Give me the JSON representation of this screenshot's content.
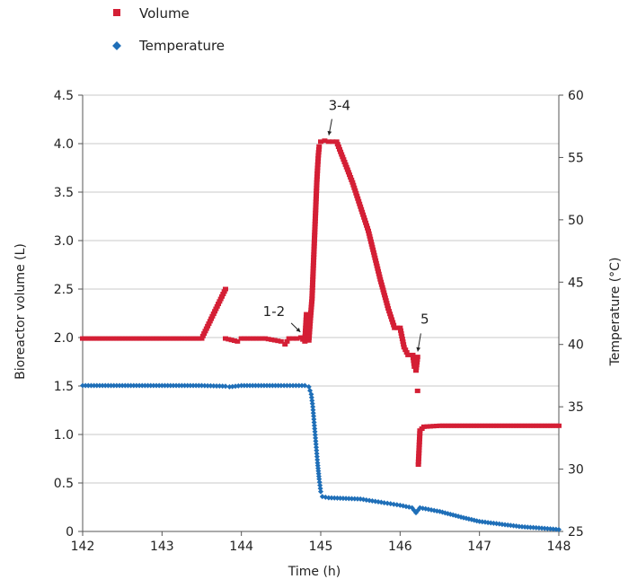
{
  "chart_data": {
    "type": "scatter",
    "xlabel": "Time (h)",
    "ylabel_left": "Bioreactor volume (L)",
    "ylabel_right": "Temperature (°C)",
    "xlim": [
      142,
      148
    ],
    "ylim_left": [
      0,
      4.5
    ],
    "ylim_right": [
      25,
      60
    ],
    "x_ticks": [
      "142",
      "143",
      "144",
      "145",
      "146",
      "147",
      "148"
    ],
    "y_ticks_left": [
      "0",
      "0.5",
      "1.0",
      "1.5",
      "2.0",
      "2.5",
      "3.0",
      "3.5",
      "4.0",
      "4.5"
    ],
    "y_ticks_right": [
      "25",
      "30",
      "35",
      "40",
      "45",
      "50",
      "55",
      "60"
    ],
    "grid": "horizontal",
    "legend_position": "top-left",
    "colors": {
      "volume": "#d41f35",
      "temperature": "#1f6fb8"
    },
    "series": [
      {
        "name": "Volume",
        "axis": "left",
        "marker": "square",
        "points": [
          [
            142.0,
            1.99
          ],
          [
            142.5,
            1.99
          ],
          [
            143.0,
            1.99
          ],
          [
            143.5,
            1.99
          ],
          [
            143.8,
            2.5
          ],
          [
            143.8,
            1.99
          ],
          [
            143.95,
            1.96
          ],
          [
            144.0,
            1.99
          ],
          [
            144.3,
            1.99
          ],
          [
            144.5,
            1.96
          ],
          [
            144.55,
            1.93
          ],
          [
            144.6,
            1.99
          ],
          [
            144.7,
            1.99
          ],
          [
            144.75,
            2.0
          ],
          [
            144.8,
            1.96
          ],
          [
            144.82,
            2.24
          ],
          [
            144.85,
            1.97
          ],
          [
            144.87,
            2.2
          ],
          [
            144.89,
            2.4
          ],
          [
            144.9,
            2.6
          ],
          [
            144.91,
            2.8
          ],
          [
            144.92,
            3.0
          ],
          [
            144.93,
            3.2
          ],
          [
            144.94,
            3.4
          ],
          [
            144.95,
            3.6
          ],
          [
            144.96,
            3.75
          ],
          [
            144.97,
            3.88
          ],
          [
            144.98,
            3.97
          ],
          [
            145.0,
            4.02
          ],
          [
            145.05,
            4.03
          ],
          [
            145.1,
            4.02
          ],
          [
            145.2,
            4.02
          ],
          [
            145.4,
            3.6
          ],
          [
            145.6,
            3.1
          ],
          [
            145.75,
            2.6
          ],
          [
            145.85,
            2.3
          ],
          [
            145.93,
            2.1
          ],
          [
            146.0,
            2.1
          ],
          [
            146.05,
            1.9
          ],
          [
            146.1,
            1.82
          ],
          [
            146.16,
            1.82
          ],
          [
            146.18,
            1.7
          ],
          [
            146.2,
            1.66
          ],
          [
            146.22,
            1.8
          ],
          [
            146.22,
            1.45
          ],
          [
            146.23,
            0.69
          ],
          [
            146.25,
            1.04
          ],
          [
            146.3,
            1.08
          ],
          [
            146.5,
            1.09
          ],
          [
            147.0,
            1.09
          ],
          [
            147.5,
            1.09
          ],
          [
            148.0,
            1.09
          ]
        ]
      },
      {
        "name": "Temperature",
        "axis": "right",
        "marker": "diamond",
        "points": [
          [
            142.0,
            36.7
          ],
          [
            142.5,
            36.7
          ],
          [
            143.0,
            36.7
          ],
          [
            143.5,
            36.7
          ],
          [
            143.8,
            36.65
          ],
          [
            143.85,
            36.6
          ],
          [
            144.0,
            36.7
          ],
          [
            144.5,
            36.7
          ],
          [
            144.8,
            36.7
          ],
          [
            144.85,
            36.6
          ],
          [
            144.88,
            36.0
          ],
          [
            144.9,
            35.0
          ],
          [
            144.92,
            33.5
          ],
          [
            144.94,
            32.0
          ],
          [
            144.96,
            30.5
          ],
          [
            144.98,
            29.2
          ],
          [
            145.0,
            28.2
          ],
          [
            145.02,
            27.8
          ],
          [
            145.1,
            27.7
          ],
          [
            145.5,
            27.6
          ],
          [
            145.8,
            27.3
          ],
          [
            146.0,
            27.1
          ],
          [
            146.15,
            26.9
          ],
          [
            146.2,
            26.5
          ],
          [
            146.25,
            26.9
          ],
          [
            146.5,
            26.6
          ],
          [
            146.8,
            26.1
          ],
          [
            147.0,
            25.8
          ],
          [
            147.5,
            25.4
          ],
          [
            148.0,
            25.15
          ]
        ]
      }
    ],
    "annotations": [
      {
        "text": "1-2",
        "x": 144.75,
        "y": 2.02
      },
      {
        "text": "3-4",
        "x": 145.1,
        "y": 4.05
      },
      {
        "text": "5",
        "x": 146.22,
        "y": 1.82
      }
    ]
  }
}
